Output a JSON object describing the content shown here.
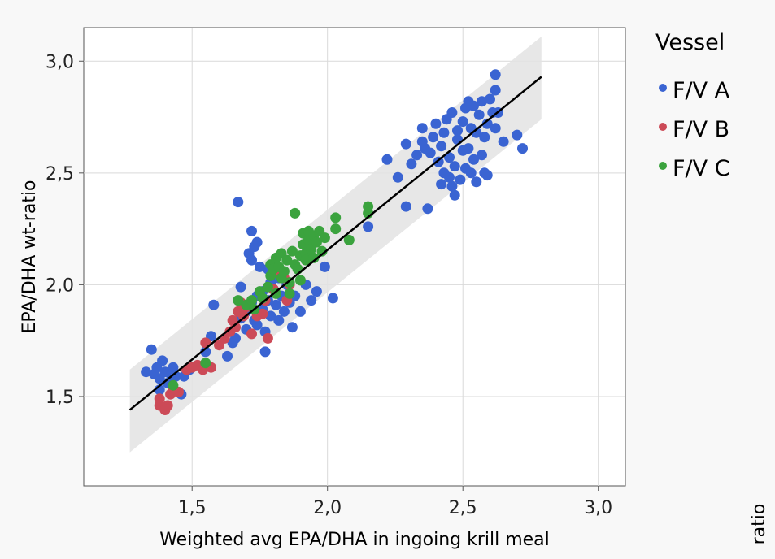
{
  "chart_data": {
    "type": "scatter",
    "xlabel": "Weighted avg EPA/DHA in ingoing krill meal",
    "ylabel": "EPA/DHA wt-ratio",
    "corner_label": "ratio",
    "xlim": [
      1.1,
      3.1
    ],
    "ylim": [
      1.1,
      3.15
    ],
    "x_ticks": [
      1.5,
      2.0,
      2.5,
      3.0
    ],
    "x_tick_labels": [
      "1,5",
      "2,0",
      "2,5",
      "3,0"
    ],
    "y_ticks": [
      1.5,
      2.0,
      2.5,
      3.0
    ],
    "y_tick_labels": [
      "1,5",
      "2,0",
      "2,5",
      "3,0"
    ],
    "grid": true,
    "legend": {
      "title": "Vessel",
      "position": "right"
    },
    "fit_line": {
      "x": [
        1.27,
        2.79
      ],
      "y": [
        1.44,
        2.93
      ],
      "color": "#000000"
    },
    "band": {
      "x": [
        1.27,
        2.79
      ],
      "upper": [
        1.62,
        3.11
      ],
      "lower": [
        1.25,
        2.74
      ],
      "color": "#e3e3e3"
    },
    "series": [
      {
        "name": "F/V A",
        "color": "#3a64d2",
        "points": [
          [
            1.33,
            1.61
          ],
          [
            1.35,
            1.71
          ],
          [
            1.36,
            1.6
          ],
          [
            1.37,
            1.63
          ],
          [
            1.38,
            1.58
          ],
          [
            1.38,
            1.53
          ],
          [
            1.39,
            1.66
          ],
          [
            1.4,
            1.61
          ],
          [
            1.41,
            1.56
          ],
          [
            1.42,
            1.6
          ],
          [
            1.43,
            1.63
          ],
          [
            1.44,
            1.59
          ],
          [
            1.46,
            1.51
          ],
          [
            1.47,
            1.59
          ],
          [
            1.49,
            1.62
          ],
          [
            1.55,
            1.7
          ],
          [
            1.57,
            1.77
          ],
          [
            1.58,
            1.91
          ],
          [
            1.63,
            1.68
          ],
          [
            1.65,
            1.74
          ],
          [
            1.66,
            1.76
          ],
          [
            1.67,
            2.37
          ],
          [
            1.68,
            1.99
          ],
          [
            1.68,
            1.85
          ],
          [
            1.7,
            1.88
          ],
          [
            1.7,
            1.8
          ],
          [
            1.71,
            2.14
          ],
          [
            1.72,
            2.24
          ],
          [
            1.72,
            2.11
          ],
          [
            1.72,
            1.92
          ],
          [
            1.73,
            2.17
          ],
          [
            1.73,
            1.84
          ],
          [
            1.74,
            2.19
          ],
          [
            1.74,
            1.95
          ],
          [
            1.74,
            1.82
          ],
          [
            1.75,
            2.08
          ],
          [
            1.76,
            1.97
          ],
          [
            1.76,
            1.89
          ],
          [
            1.77,
            1.79
          ],
          [
            1.77,
            1.7
          ],
          [
            1.78,
            2.07
          ],
          [
            1.78,
            1.93
          ],
          [
            1.79,
            2.01
          ],
          [
            1.79,
            1.86
          ],
          [
            1.8,
            1.98
          ],
          [
            1.81,
            1.91
          ],
          [
            1.82,
            2.03
          ],
          [
            1.82,
            1.84
          ],
          [
            1.83,
            1.95
          ],
          [
            1.84,
            1.88
          ],
          [
            1.85,
            2.0
          ],
          [
            1.86,
            1.92
          ],
          [
            1.87,
            1.81
          ],
          [
            1.88,
            1.95
          ],
          [
            1.9,
            1.88
          ],
          [
            1.92,
            2.0
          ],
          [
            1.94,
            1.93
          ],
          [
            1.96,
            1.97
          ],
          [
            1.99,
            2.08
          ],
          [
            2.02,
            1.94
          ],
          [
            2.15,
            2.26
          ],
          [
            2.22,
            2.56
          ],
          [
            2.26,
            2.48
          ],
          [
            2.29,
            2.35
          ],
          [
            2.29,
            2.63
          ],
          [
            2.31,
            2.54
          ],
          [
            2.33,
            2.58
          ],
          [
            2.35,
            2.64
          ],
          [
            2.35,
            2.7
          ],
          [
            2.36,
            2.61
          ],
          [
            2.37,
            2.34
          ],
          [
            2.38,
            2.59
          ],
          [
            2.39,
            2.66
          ],
          [
            2.4,
            2.72
          ],
          [
            2.41,
            2.55
          ],
          [
            2.42,
            2.62
          ],
          [
            2.42,
            2.45
          ],
          [
            2.43,
            2.5
          ],
          [
            2.43,
            2.68
          ],
          [
            2.44,
            2.74
          ],
          [
            2.45,
            2.57
          ],
          [
            2.45,
            2.48
          ],
          [
            2.46,
            2.77
          ],
          [
            2.46,
            2.44
          ],
          [
            2.47,
            2.53
          ],
          [
            2.47,
            2.4
          ],
          [
            2.48,
            2.65
          ],
          [
            2.48,
            2.69
          ],
          [
            2.49,
            2.47
          ],
          [
            2.5,
            2.6
          ],
          [
            2.5,
            2.73
          ],
          [
            2.51,
            2.52
          ],
          [
            2.51,
            2.79
          ],
          [
            2.52,
            2.82
          ],
          [
            2.52,
            2.61
          ],
          [
            2.53,
            2.7
          ],
          [
            2.53,
            2.5
          ],
          [
            2.54,
            2.56
          ],
          [
            2.54,
            2.8
          ],
          [
            2.55,
            2.68
          ],
          [
            2.55,
            2.46
          ],
          [
            2.56,
            2.76
          ],
          [
            2.57,
            2.58
          ],
          [
            2.57,
            2.82
          ],
          [
            2.58,
            2.5
          ],
          [
            2.58,
            2.66
          ],
          [
            2.59,
            2.72
          ],
          [
            2.59,
            2.49
          ],
          [
            2.6,
            2.83
          ],
          [
            2.61,
            2.77
          ],
          [
            2.62,
            2.7
          ],
          [
            2.62,
            2.94
          ],
          [
            2.62,
            2.87
          ],
          [
            2.63,
            2.77
          ],
          [
            2.65,
            2.64
          ],
          [
            2.7,
            2.67
          ],
          [
            2.72,
            2.61
          ]
        ]
      },
      {
        "name": "F/V B",
        "color": "#cc4a57",
        "points": [
          [
            1.38,
            1.49
          ],
          [
            1.38,
            1.46
          ],
          [
            1.4,
            1.44
          ],
          [
            1.41,
            1.46
          ],
          [
            1.42,
            1.51
          ],
          [
            1.43,
            1.53
          ],
          [
            1.45,
            1.52
          ],
          [
            1.48,
            1.62
          ],
          [
            1.5,
            1.63
          ],
          [
            1.52,
            1.64
          ],
          [
            1.54,
            1.62
          ],
          [
            1.55,
            1.74
          ],
          [
            1.57,
            1.63
          ],
          [
            1.6,
            1.73
          ],
          [
            1.62,
            1.76
          ],
          [
            1.64,
            1.79
          ],
          [
            1.65,
            1.84
          ],
          [
            1.66,
            1.81
          ],
          [
            1.67,
            1.88
          ],
          [
            1.68,
            1.92
          ],
          [
            1.69,
            1.86
          ],
          [
            1.7,
            1.9
          ],
          [
            1.72,
            1.78
          ],
          [
            1.74,
            1.86
          ],
          [
            1.76,
            1.87
          ],
          [
            1.77,
            1.93
          ],
          [
            1.78,
            1.76
          ],
          [
            1.8,
            1.98
          ],
          [
            1.82,
            2.05
          ],
          [
            1.84,
            2.03
          ],
          [
            1.85,
            1.93
          ],
          [
            1.86,
            2.0
          ]
        ]
      },
      {
        "name": "F/V C",
        "color": "#3ba33e",
        "points": [
          [
            1.43,
            1.55
          ],
          [
            1.55,
            1.65
          ],
          [
            1.67,
            1.93
          ],
          [
            1.7,
            1.91
          ],
          [
            1.72,
            1.93
          ],
          [
            1.73,
            1.89
          ],
          [
            1.75,
            1.97
          ],
          [
            1.76,
            1.94
          ],
          [
            1.78,
            1.99
          ],
          [
            1.79,
            2.04
          ],
          [
            1.79,
            2.09
          ],
          [
            1.8,
            2.07
          ],
          [
            1.81,
            1.96
          ],
          [
            1.81,
            2.12
          ],
          [
            1.82,
            2.08
          ],
          [
            1.83,
            2.14
          ],
          [
            1.83,
            2.03
          ],
          [
            1.84,
            2.06
          ],
          [
            1.85,
            2.11
          ],
          [
            1.86,
            2.01
          ],
          [
            1.86,
            1.96
          ],
          [
            1.87,
            2.15
          ],
          [
            1.88,
            2.32
          ],
          [
            1.88,
            2.09
          ],
          [
            1.89,
            2.07
          ],
          [
            1.9,
            2.13
          ],
          [
            1.9,
            2.02
          ],
          [
            1.91,
            2.23
          ],
          [
            1.91,
            2.18
          ],
          [
            1.92,
            2.14
          ],
          [
            1.92,
            2.11
          ],
          [
            1.93,
            2.2
          ],
          [
            1.93,
            2.24
          ],
          [
            1.94,
            2.16
          ],
          [
            1.95,
            2.22
          ],
          [
            1.95,
            2.12
          ],
          [
            1.96,
            2.19
          ],
          [
            1.97,
            2.24
          ],
          [
            1.98,
            2.15
          ],
          [
            1.99,
            2.21
          ],
          [
            2.03,
            2.3
          ],
          [
            2.03,
            2.25
          ],
          [
            2.08,
            2.2
          ],
          [
            2.15,
            2.35
          ],
          [
            2.15,
            2.32
          ]
        ]
      }
    ]
  }
}
